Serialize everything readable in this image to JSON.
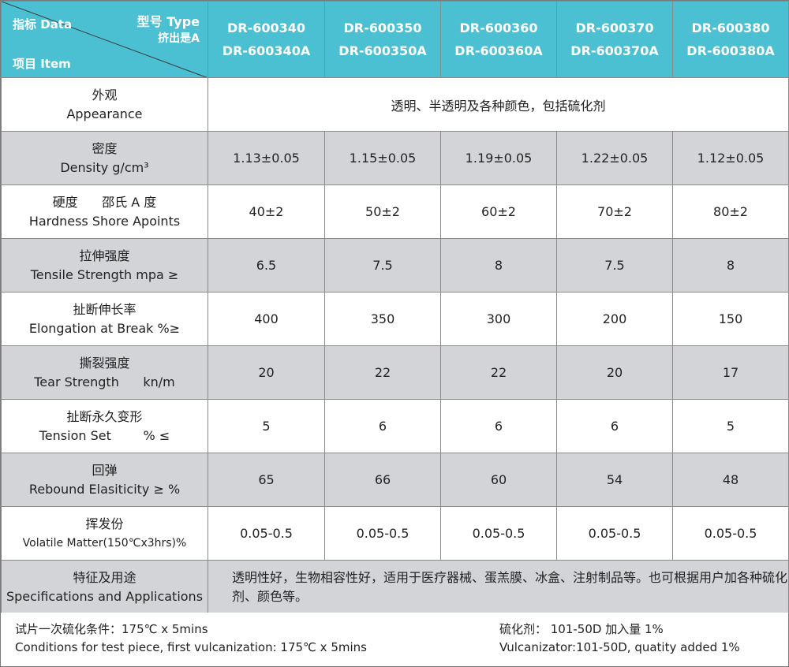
{
  "header": {
    "data_label": "指标 Data",
    "type_label": "型号 Type",
    "extrusion_label": "挤出是A",
    "item_label": "项目 Item",
    "models": [
      {
        "code": "DR-600340",
        "extruded": "DR-600340A"
      },
      {
        "code": "DR-600350",
        "extruded": "DR-600350A"
      },
      {
        "code": "DR-600360",
        "extruded": "DR-600360A"
      },
      {
        "code": "DR-600370",
        "extruded": "DR-600370A"
      },
      {
        "code": "DR-600380",
        "extruded": "DR-600380A"
      }
    ]
  },
  "rows": [
    {
      "zh": "外观",
      "en": "Appearance",
      "merged": "透明、半透明及各种颜色，包括硫化剂"
    },
    {
      "zh": "密度",
      "en": "Density  g/cm³",
      "values": [
        "1.13±0.05",
        "1.15±0.05",
        "1.19±0.05",
        "1.22±0.05",
        "1.12±0.05"
      ]
    },
    {
      "zh": "硬度      邵氏 A 度",
      "en": "Hardness  Shore Apoints",
      "values": [
        "40±2",
        "50±2",
        "60±2",
        "70±2",
        "80±2"
      ]
    },
    {
      "zh": "拉伸强度",
      "en": "Tensile Strength  mpa ≥",
      "values": [
        "6.5",
        "7.5",
        "8",
        "7.5",
        "8"
      ]
    },
    {
      "zh": "扯断伸长率",
      "en": "Elongation at Break %≥",
      "values": [
        "400",
        "350",
        "300",
        "200",
        "150"
      ]
    },
    {
      "zh": "撕裂强度",
      "en": "Tear Strength      kn/m",
      "values": [
        "20",
        "22",
        "22",
        "20",
        "17"
      ]
    },
    {
      "zh": "扯断永久变形",
      "en": "Tension Set        % ≤",
      "values": [
        "5",
        "6",
        "6",
        "6",
        "5"
      ]
    },
    {
      "zh": "回弹",
      "en": "Rebound Elasiticity  ≥ %",
      "values": [
        "65",
        "66",
        "60",
        "54",
        "48"
      ]
    },
    {
      "zh": "挥发份",
      "en": "Volatile Matter(150℃x3hrs)%",
      "values": [
        "0.05-0.5",
        "0.05-0.5",
        "0.05-0.5",
        "0.05-0.5",
        "0.05-0.5"
      ]
    },
    {
      "zh": "特征及用途",
      "en": "Specifications and Applications",
      "merged": "透明性好，生物相容性好，适用于医疗器械、蛋羔膜、冰盒、注射制品等。也可根据用户加各种硫化剂、颜色等。"
    }
  ],
  "footer": {
    "test_zh": "试片一次硫化条件：175℃ x 5mins",
    "test_en": "Conditions for test piece, first vulcanization: 175℃ x 5mins",
    "vulc_zh": "硫化剂： 101-50D  加入量 1%",
    "vulc_en": "Vulcanizator:101-50D, quatity added 1%"
  }
}
